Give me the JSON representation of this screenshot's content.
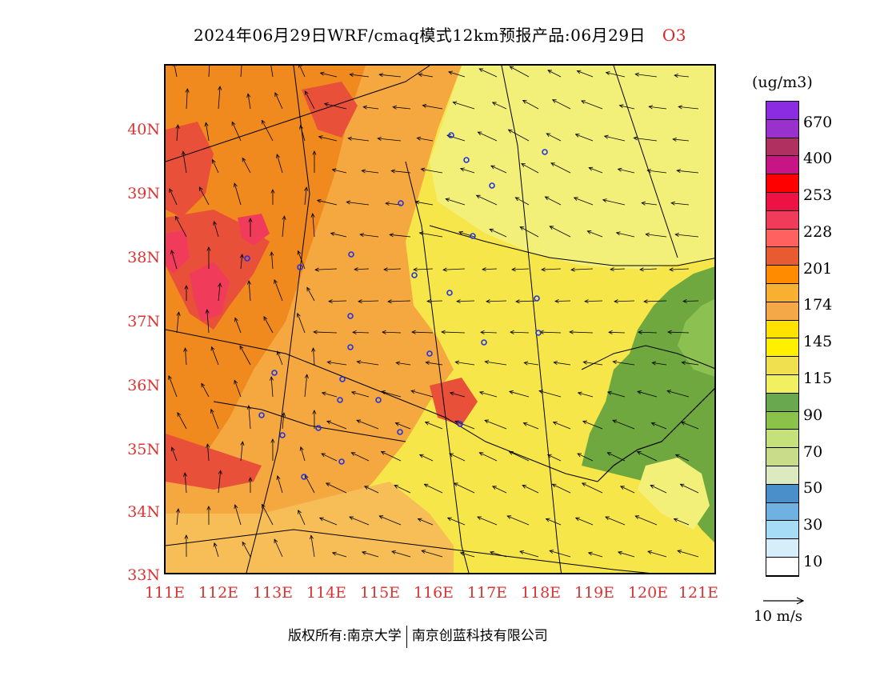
{
  "title": {
    "main": "2024年06月29日WRF/cmaq模式12km预报产品:06月29日",
    "species": "O3"
  },
  "axes": {
    "lat_labels": [
      "40N",
      "39N",
      "38N",
      "37N",
      "36N",
      "35N",
      "34N",
      "33N"
    ],
    "lon_labels": [
      "111E",
      "112E",
      "113E",
      "114E",
      "115E",
      "116E",
      "117E",
      "118E",
      "119E",
      "120E",
      "121E"
    ]
  },
  "legend": {
    "unit": "(ug/m3)",
    "labels": [
      "670",
      "400",
      "253",
      "228",
      "201",
      "174",
      "145",
      "115",
      "90",
      "70",
      "50",
      "30",
      "10"
    ],
    "colors": [
      "#8b2be2",
      "#9932cc",
      "#b03060",
      "#c71585",
      "#ff0000",
      "#ee1144",
      "#f03c5a",
      "#ff6060",
      "#e85a30",
      "#ff8c00",
      "#f8b030",
      "#f5a848",
      "#ffe200",
      "#fff000",
      "#f0e050",
      "#f0f060",
      "#6aa84f",
      "#8bc34a",
      "#c5e17a",
      "#c8dc8a",
      "#ddeac0",
      "#4a8fc9",
      "#6fb1e0",
      "#a6dcf5",
      "#d6eef9",
      "#ffffff"
    ]
  },
  "wind_reference": {
    "label": "10 m/s"
  },
  "copyright": {
    "left": "版权所有:南京大学",
    "right": "南京创蓝科技有限公司"
  },
  "palette": {
    "orange_dark": "#f08a1e",
    "orange": "#f5a840",
    "light_orange": "#f7be58",
    "yellow": "#f7e64a",
    "light_yellow": "#f3f07a",
    "green": "#6fa83e",
    "light_green": "#8cc152",
    "red": "#e8503a",
    "pink": "#f03c5a",
    "station_color": "#2233dd"
  }
}
